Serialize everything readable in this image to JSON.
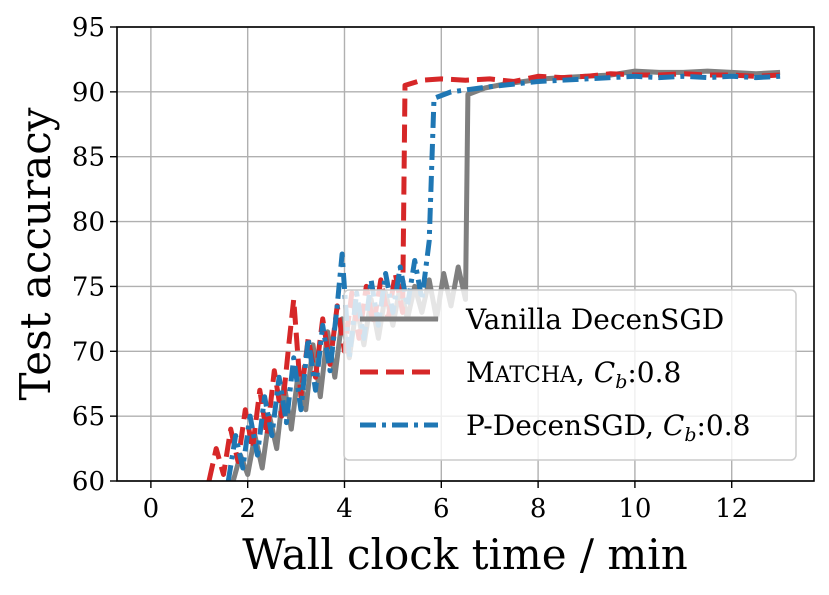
{
  "chart_data": {
    "type": "line",
    "title": "",
    "xlabel": "Wall clock time / min",
    "ylabel": "Test accuracy",
    "xlim": [
      -0.7,
      13.7
    ],
    "ylim": [
      60,
      95
    ],
    "xticks": [
      0,
      2,
      4,
      6,
      8,
      10,
      12
    ],
    "yticks": [
      60,
      65,
      70,
      75,
      80,
      85,
      90,
      95
    ],
    "grid": true,
    "legend_position": "lower-right",
    "series": [
      {
        "name": "Vanilla DecenSGD",
        "legend_label": "Vanilla DecenSGD",
        "color": "#7f7f7f",
        "style": "solid",
        "points": [
          [
            1.7,
            60.0
          ],
          [
            1.85,
            62.0
          ],
          [
            2.0,
            60.5
          ],
          [
            2.15,
            63.5
          ],
          [
            2.3,
            61.0
          ],
          [
            2.45,
            65.0
          ],
          [
            2.6,
            62.5
          ],
          [
            2.75,
            67.5
          ],
          [
            2.9,
            64.0
          ],
          [
            3.05,
            68.5
          ],
          [
            3.2,
            65.5
          ],
          [
            3.35,
            70.5
          ],
          [
            3.5,
            66.5
          ],
          [
            3.65,
            71.5
          ],
          [
            3.8,
            68.0
          ],
          [
            3.95,
            72.5
          ],
          [
            4.1,
            69.5
          ],
          [
            4.25,
            73.5
          ],
          [
            4.4,
            70.5
          ],
          [
            4.55,
            74.0
          ],
          [
            4.7,
            71.0
          ],
          [
            4.85,
            74.5
          ],
          [
            5.0,
            72.0
          ],
          [
            5.15,
            75.0
          ],
          [
            5.3,
            72.5
          ],
          [
            5.45,
            75.0
          ],
          [
            5.6,
            73.0
          ],
          [
            5.75,
            75.5
          ],
          [
            5.9,
            72.5
          ],
          [
            6.05,
            76.0
          ],
          [
            6.2,
            73.5
          ],
          [
            6.35,
            76.5
          ],
          [
            6.5,
            74.0
          ],
          [
            6.55,
            89.8
          ],
          [
            6.9,
            90.3
          ],
          [
            7.3,
            90.6
          ],
          [
            7.7,
            90.8
          ],
          [
            8.1,
            91.0
          ],
          [
            8.5,
            91.1
          ],
          [
            9.0,
            91.2
          ],
          [
            9.5,
            91.3
          ],
          [
            10.0,
            91.6
          ],
          [
            10.5,
            91.5
          ],
          [
            11.0,
            91.5
          ],
          [
            11.5,
            91.6
          ],
          [
            12.0,
            91.5
          ],
          [
            12.5,
            91.4
          ],
          [
            13.0,
            91.5
          ]
        ]
      },
      {
        "name": "MATCHA, Cb:0.8",
        "legend_label_prefix": "M",
        "legend_label_smallcaps": "ATCHA",
        "legend_label_rest": ", ",
        "legend_label_italic": "C",
        "legend_label_sub": "b",
        "legend_label_suffix": ":0.8",
        "color": "#d62728",
        "style": "dashed",
        "points": [
          [
            1.2,
            60.0
          ],
          [
            1.35,
            62.5
          ],
          [
            1.5,
            60.5
          ],
          [
            1.65,
            64.0
          ],
          [
            1.8,
            61.5
          ],
          [
            1.95,
            65.5
          ],
          [
            2.1,
            62.5
          ],
          [
            2.25,
            67.0
          ],
          [
            2.4,
            63.5
          ],
          [
            2.55,
            68.5
          ],
          [
            2.7,
            65.0
          ],
          [
            2.85,
            70.5
          ],
          [
            2.95,
            74.0
          ],
          [
            3.1,
            66.5
          ],
          [
            3.25,
            71.0
          ],
          [
            3.4,
            68.0
          ],
          [
            3.55,
            72.5
          ],
          [
            3.7,
            69.0
          ],
          [
            3.85,
            73.5
          ],
          [
            4.0,
            70.0
          ],
          [
            4.15,
            74.5
          ],
          [
            4.3,
            71.0
          ],
          [
            4.45,
            75.0
          ],
          [
            4.6,
            72.0
          ],
          [
            4.75,
            75.5
          ],
          [
            4.9,
            72.5
          ],
          [
            5.05,
            76.0
          ],
          [
            5.2,
            73.0
          ],
          [
            5.25,
            90.5
          ],
          [
            5.6,
            90.9
          ],
          [
            6.0,
            91.0
          ],
          [
            6.5,
            90.9
          ],
          [
            7.0,
            91.0
          ],
          [
            7.5,
            90.8
          ],
          [
            8.0,
            91.2
          ],
          [
            8.5,
            91.1
          ],
          [
            9.0,
            91.2
          ],
          [
            9.5,
            91.4
          ],
          [
            10.0,
            91.3
          ],
          [
            10.5,
            91.3
          ],
          [
            11.0,
            91.4
          ],
          [
            11.5,
            91.3
          ],
          [
            12.0,
            91.3
          ],
          [
            12.5,
            91.2
          ],
          [
            13.0,
            91.3
          ]
        ]
      },
      {
        "name": "P-DecenSGD, Cb:0.8",
        "legend_label_prefix": "P-DecenSGD, ",
        "legend_label_italic": "C",
        "legend_label_sub": "b",
        "legend_label_suffix": ":0.8",
        "color": "#1f77b4",
        "style": "dashdot",
        "points": [
          [
            1.6,
            60.0
          ],
          [
            1.75,
            63.5
          ],
          [
            1.9,
            61.0
          ],
          [
            2.05,
            65.0
          ],
          [
            2.2,
            62.0
          ],
          [
            2.35,
            66.5
          ],
          [
            2.5,
            63.5
          ],
          [
            2.65,
            68.0
          ],
          [
            2.8,
            64.5
          ],
          [
            2.95,
            69.5
          ],
          [
            3.1,
            65.5
          ],
          [
            3.25,
            71.0
          ],
          [
            3.4,
            67.0
          ],
          [
            3.55,
            72.0
          ],
          [
            3.7,
            68.5
          ],
          [
            3.85,
            73.5
          ],
          [
            3.95,
            77.5
          ],
          [
            4.1,
            69.5
          ],
          [
            4.25,
            74.5
          ],
          [
            4.4,
            71.0
          ],
          [
            4.55,
            75.5
          ],
          [
            4.7,
            72.0
          ],
          [
            4.85,
            76.0
          ],
          [
            5.0,
            73.0
          ],
          [
            5.15,
            76.5
          ],
          [
            5.3,
            73.5
          ],
          [
            5.45,
            77.0
          ],
          [
            5.6,
            74.0
          ],
          [
            5.75,
            78.5
          ],
          [
            5.85,
            89.5
          ],
          [
            6.2,
            90.0
          ],
          [
            6.6,
            90.2
          ],
          [
            7.0,
            90.4
          ],
          [
            7.5,
            90.6
          ],
          [
            8.0,
            90.8
          ],
          [
            8.5,
            90.9
          ],
          [
            9.0,
            91.0
          ],
          [
            9.5,
            91.1
          ],
          [
            10.0,
            91.2
          ],
          [
            10.5,
            91.1
          ],
          [
            11.0,
            91.2
          ],
          [
            11.5,
            91.1
          ],
          [
            12.0,
            91.2
          ],
          [
            12.5,
            91.1
          ],
          [
            13.0,
            91.2
          ]
        ]
      }
    ]
  }
}
